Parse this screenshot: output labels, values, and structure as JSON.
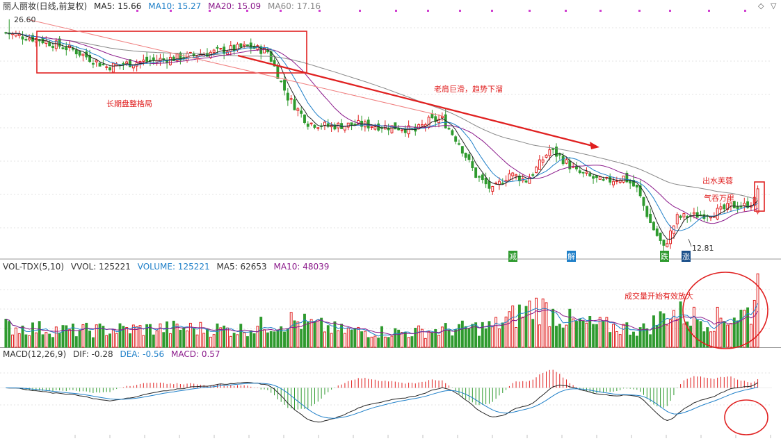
{
  "header": {
    "title": "丽人丽妆(日线,前复权)",
    "ma5": "MA5: 15.66",
    "ma10": "MA10: 15.27",
    "ma20": "MA20: 15.09",
    "ma60": "MA60: 17.16"
  },
  "vol_header": {
    "name": "VOL-TDX(5,10)",
    "vvol": "VVOL: 125221",
    "volume": "VOLUME: 125221",
    "ma5": "MA5: 62653",
    "ma10": "MA10: 48039"
  },
  "macd_header": {
    "name": "MACD(12,26,9)",
    "dif": "DIF: -0.28",
    "dea": "DEA: -0.56",
    "macd": "MACD: 0.57"
  },
  "annotations": {
    "consolidation": "长期盘整格局",
    "head_shoulders": "老肩巨滑，趋势下溜",
    "emerge": "出水芙蓉",
    "momentum": "气吞万里",
    "volume": "成交量开始有效放大"
  },
  "markers": {
    "jian": "减",
    "jie": "解",
    "die": "跌",
    "zhang": "涨"
  },
  "price_labels": {
    "high": "26.60",
    "low": "12.81"
  },
  "colors": {
    "up": "#e02020",
    "down": "#2e9a2e",
    "ma5": "#222222",
    "ma10": "#1e7fc8",
    "ma20": "#8b1a8b",
    "ma60": "#888888",
    "annotation": "#e02020"
  },
  "chart_data": {
    "type": "candlestick",
    "keypoints": [
      [
        0,
        25.8
      ],
      [
        10,
        25.4
      ],
      [
        20,
        24.8
      ],
      [
        30,
        23.8
      ],
      [
        40,
        24.1
      ],
      [
        50,
        24.3
      ],
      [
        60,
        24.6
      ],
      [
        72,
        25.0
      ],
      [
        78,
        24.7
      ],
      [
        84,
        22.0
      ],
      [
        90,
        20.5
      ],
      [
        96,
        20.3
      ],
      [
        105,
        20.4
      ],
      [
        118,
        20.2
      ],
      [
        122,
        20.0
      ],
      [
        126,
        20.6
      ],
      [
        130,
        20.7
      ],
      [
        135,
        19.3
      ],
      [
        140,
        17.4
      ],
      [
        145,
        16.5
      ],
      [
        150,
        17.5
      ],
      [
        155,
        17.1
      ],
      [
        158,
        17.8
      ],
      [
        162,
        18.9
      ],
      [
        165,
        18.5
      ],
      [
        170,
        17.6
      ],
      [
        178,
        17.0
      ],
      [
        184,
        17.3
      ],
      [
        188,
        16.6
      ],
      [
        192,
        14.6
      ],
      [
        196,
        13.1
      ],
      [
        200,
        14.9
      ],
      [
        208,
        15.1
      ],
      [
        213,
        15.3
      ],
      [
        216,
        15.6
      ],
      [
        220,
        15.6
      ],
      [
        224,
        16.0
      ]
    ],
    "volume_keypoints": [
      [
        0,
        35
      ],
      [
        20,
        28
      ],
      [
        50,
        32
      ],
      [
        70,
        30
      ],
      [
        85,
        45
      ],
      [
        100,
        28
      ],
      [
        120,
        25
      ],
      [
        145,
        35
      ],
      [
        158,
        70
      ],
      [
        170,
        40
      ],
      [
        190,
        30
      ],
      [
        198,
        60
      ],
      [
        210,
        45
      ],
      [
        222,
        60
      ],
      [
        224,
        125
      ]
    ],
    "ylim": [
      12.5,
      27.0
    ],
    "volume_ylim": [
      0,
      130
    ],
    "macd_ylim": [
      -1.6,
      1.0
    ],
    "lows": {
      "index": 196,
      "value": 12.81
    },
    "highs": {
      "index": 1,
      "value": 26.6
    }
  }
}
